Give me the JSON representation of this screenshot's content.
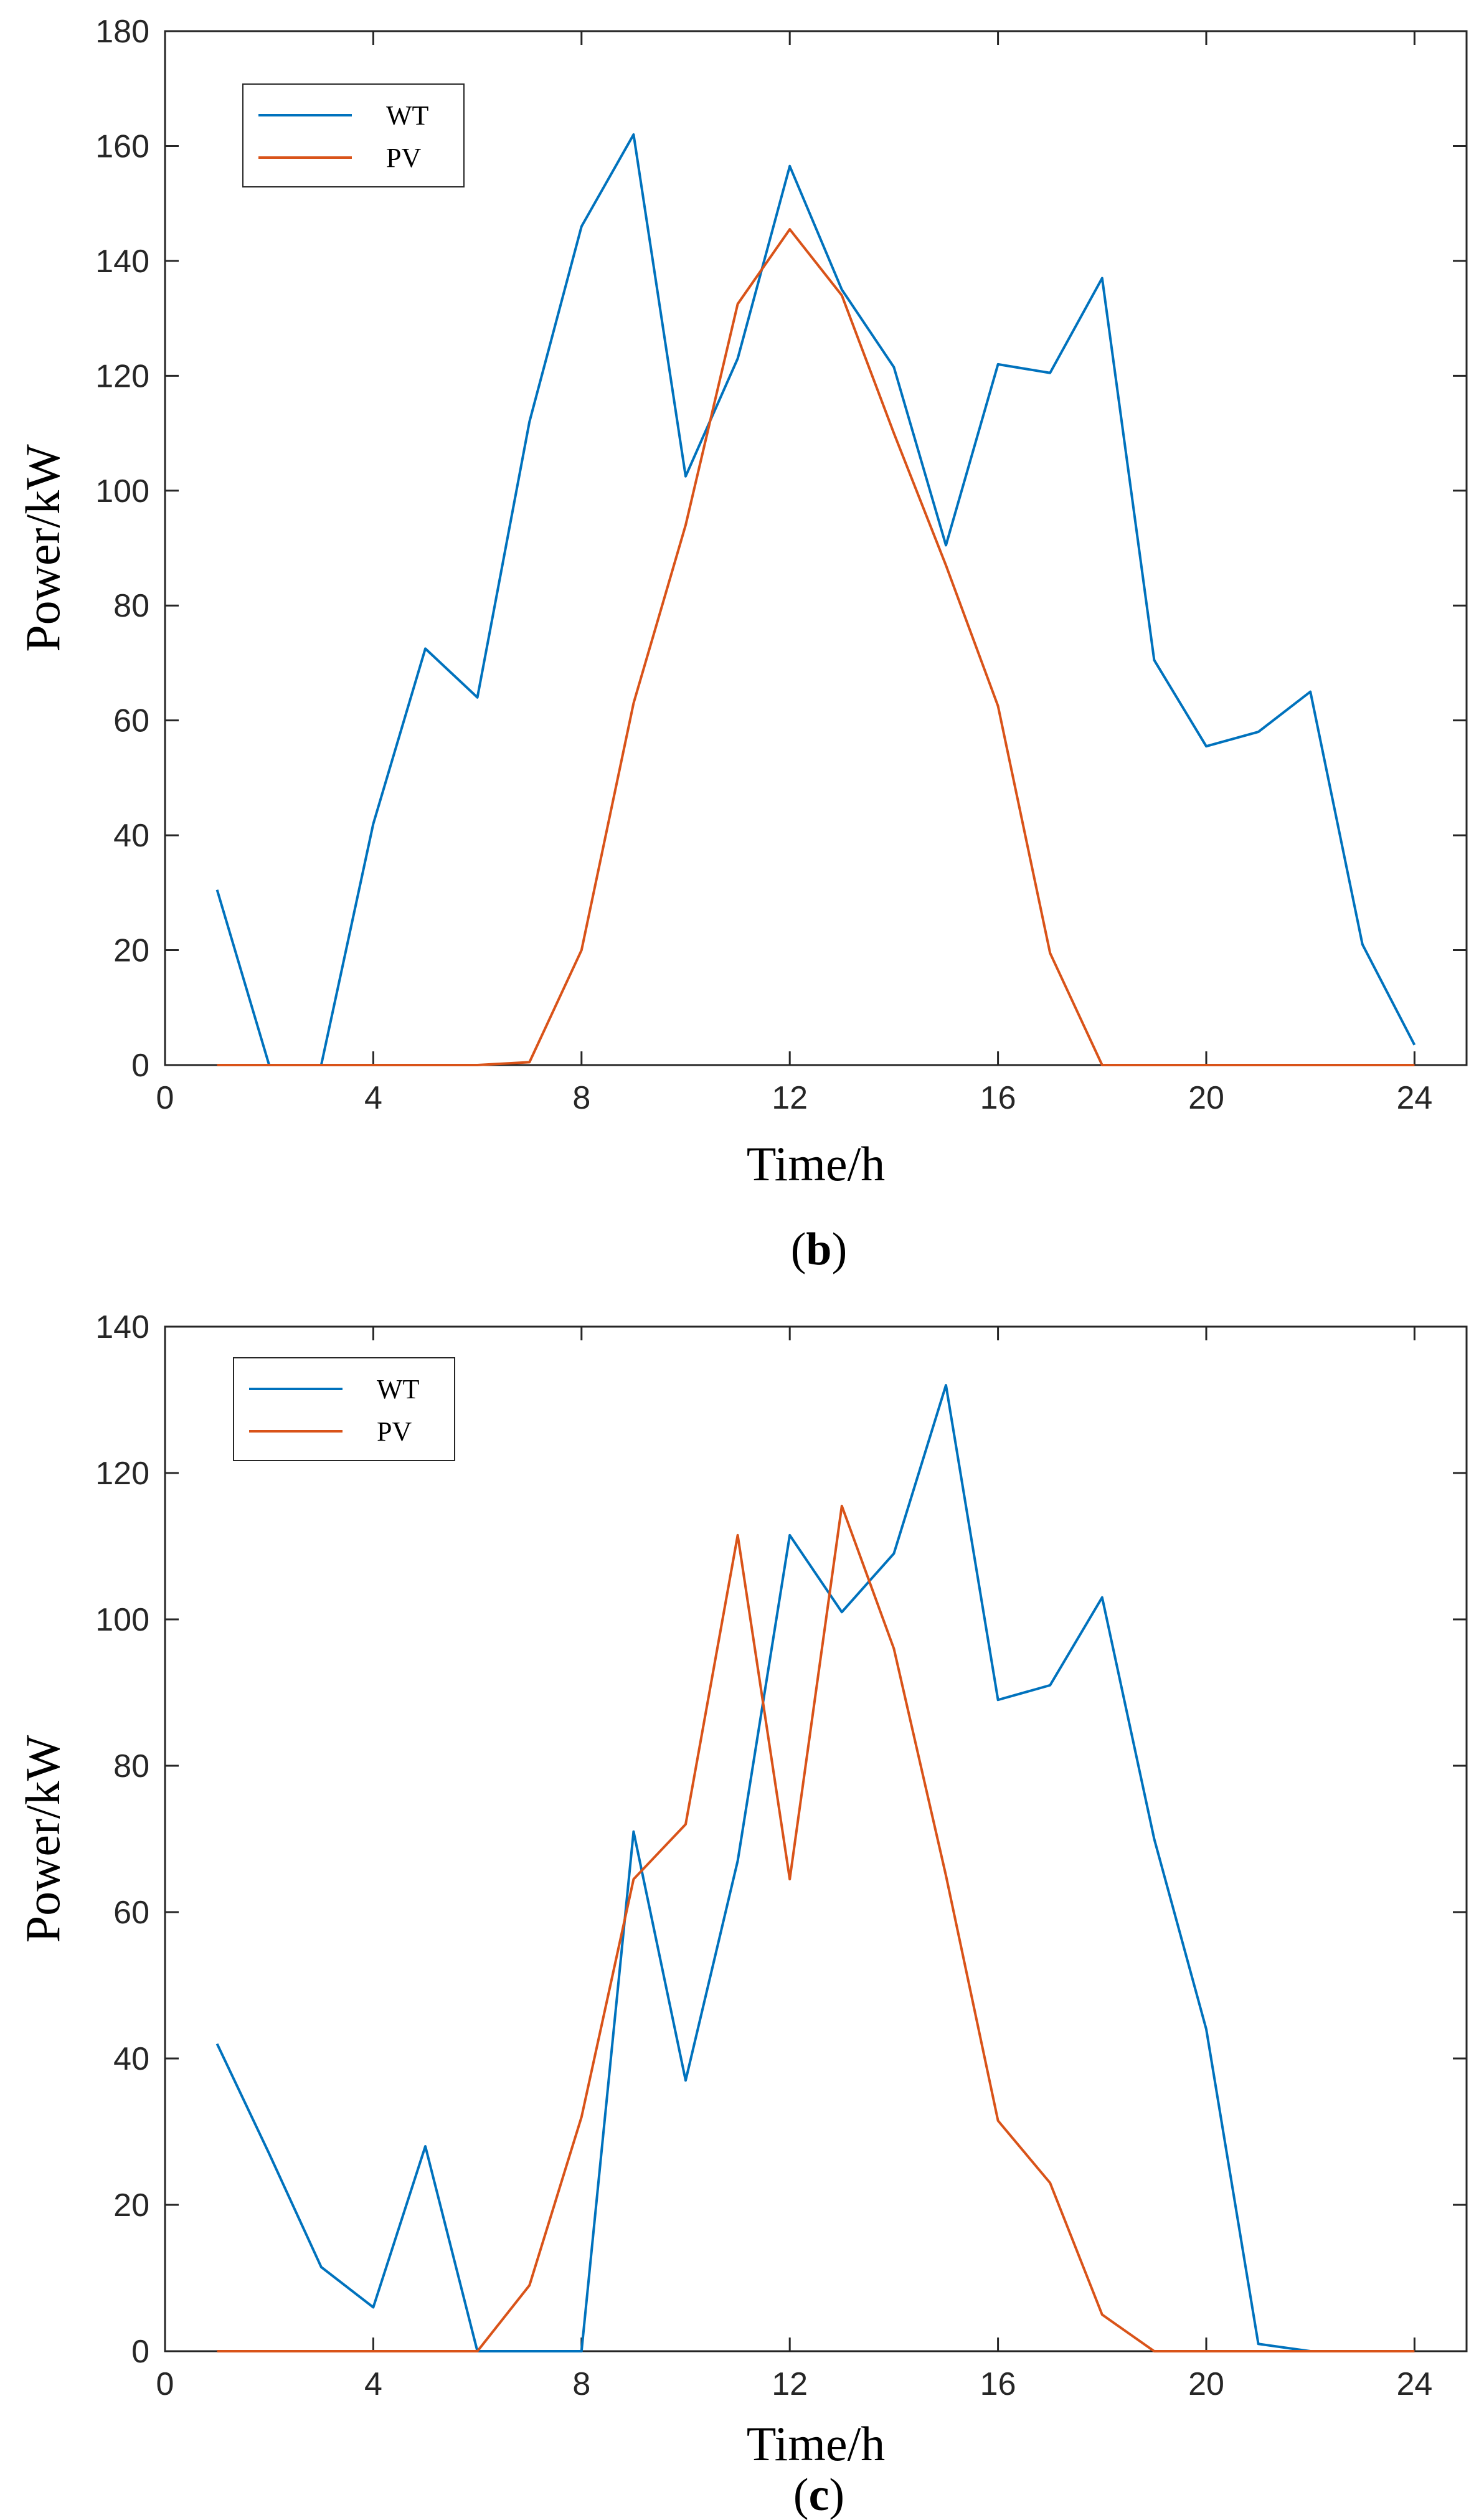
{
  "chart_data": [
    {
      "type": "line",
      "caption": "b",
      "xlabel": "Time/h",
      "ylabel": "Power/kW",
      "xlim": [
        0,
        25
      ],
      "ylim": [
        0,
        180
      ],
      "xticks": [
        0,
        4,
        8,
        12,
        16,
        20,
        24
      ],
      "yticks": [
        0,
        20,
        40,
        60,
        80,
        100,
        120,
        140,
        160,
        180
      ],
      "grid": false,
      "legend_position": "top-left",
      "x": [
        1,
        2,
        3,
        4,
        5,
        6,
        7,
        8,
        9,
        10,
        11,
        12,
        13,
        14,
        15,
        16,
        17,
        18,
        19,
        20,
        21,
        22,
        23,
        24
      ],
      "series": [
        {
          "name": "WT",
          "color": "#0072BD",
          "values": [
            30.5,
            0,
            0,
            42,
            72.5,
            64,
            112,
            146,
            162,
            102.5,
            123,
            156.5,
            135,
            121.5,
            90.5,
            122,
            120.5,
            137,
            70.5,
            55.5,
            58,
            65,
            21,
            3.5
          ]
        },
        {
          "name": "PV",
          "color": "#D95319",
          "values": [
            0,
            0,
            0,
            0,
            0,
            0,
            0.5,
            20,
            63,
            94,
            132.5,
            145.5,
            134,
            110,
            87,
            62.5,
            19.5,
            0,
            0,
            0,
            0,
            0,
            0,
            0
          ]
        }
      ]
    },
    {
      "type": "line",
      "caption": "c",
      "xlabel": "Time/h",
      "ylabel": "Power/kW",
      "xlim": [
        0,
        25
      ],
      "ylim": [
        0,
        140
      ],
      "xticks": [
        0,
        4,
        8,
        12,
        16,
        20,
        24
      ],
      "yticks": [
        0,
        20,
        40,
        60,
        80,
        100,
        120,
        140
      ],
      "grid": false,
      "legend_position": "top-left",
      "x": [
        1,
        2,
        3,
        4,
        5,
        6,
        7,
        8,
        9,
        10,
        11,
        12,
        13,
        14,
        15,
        16,
        17,
        18,
        19,
        20,
        21,
        22,
        23,
        24
      ],
      "series": [
        {
          "name": "WT",
          "color": "#0072BD",
          "values": [
            42,
            27,
            11.5,
            6,
            28,
            0,
            0,
            0,
            71,
            37,
            67,
            111.5,
            101,
            109,
            132,
            89,
            91,
            103,
            70,
            44,
            1,
            0,
            0,
            0
          ]
        },
        {
          "name": "PV",
          "color": "#D95319",
          "values": [
            0,
            0,
            0,
            0,
            0,
            0,
            9,
            32,
            64.5,
            72,
            111.5,
            64.5,
            115.5,
            96,
            65,
            31.5,
            23,
            5,
            0,
            0,
            0,
            0,
            0,
            0
          ]
        }
      ]
    }
  ]
}
